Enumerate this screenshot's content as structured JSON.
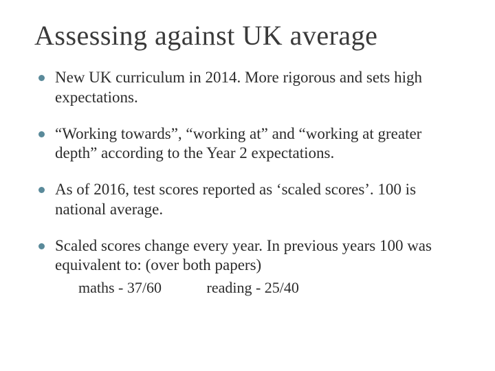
{
  "slide": {
    "title": "Assessing against UK average",
    "title_color": "#3a3a3a",
    "title_fontsize": 40,
    "background_color": "#ffffff",
    "bullet_color": "#5a8a9a",
    "text_color": "#2b2b2b",
    "body_fontsize": 23,
    "bullets": [
      {
        "text": "New UK curriculum in 2014. More rigorous and sets high expectations."
      },
      {
        "text": "“Working towards”, “working at” and “working at greater depth” according to the Year 2 expectations."
      },
      {
        "text": "As of 2016, test scores reported as ‘scaled scores’. 100 is national average."
      },
      {
        "text": "Scaled scores change every year. In previous years 100 was equivalent to:  (over both papers)",
        "sub": {
          "col1": "maths - 37/60",
          "col2": "reading  - 25/40"
        }
      }
    ]
  }
}
